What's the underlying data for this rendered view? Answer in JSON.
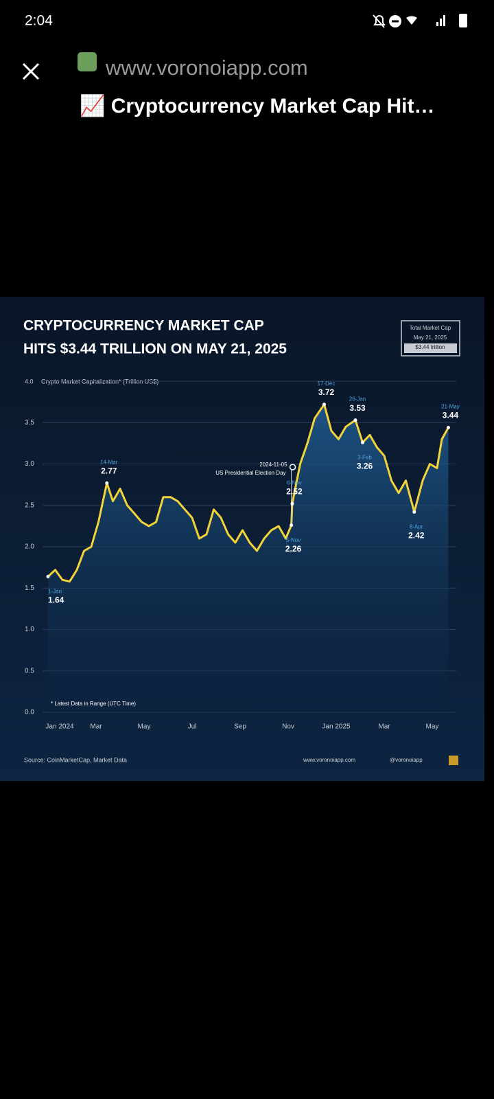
{
  "status_bar": {
    "time": "2:04"
  },
  "header": {
    "url": "www.voronoiapp.com",
    "title": "📈 Cryptocurrency Market Cap Hit…"
  },
  "chart_data": {
    "type": "line",
    "title_lines": [
      "CRYPTOCURRENCY MARKET CAP",
      "HITS $3.44 TRILLION ON MAY 21, 2025"
    ],
    "y_label": "Crypto Market Capitalization* (Trillion US$)",
    "legend_box": [
      "Total Market Cap",
      "May 21, 2025",
      "$3.44 trillion"
    ],
    "xlim": [
      0,
      17
    ],
    "xticks": [
      {
        "value": 0,
        "label": "Jan 2024"
      },
      {
        "value": 2,
        "label": "Mar"
      },
      {
        "value": 4,
        "label": "May"
      },
      {
        "value": 6,
        "label": "Jul"
      },
      {
        "value": 8,
        "label": "Sep"
      },
      {
        "value": 10,
        "label": "Nov"
      },
      {
        "value": 12,
        "label": "Jan 2025"
      },
      {
        "value": 14,
        "label": "Mar"
      },
      {
        "value": 16,
        "label": "May"
      }
    ],
    "ylim": [
      0,
      4
    ],
    "yticks": [
      {
        "value": 0,
        "label": "0.0"
      },
      0.5,
      {
        "value": 1,
        "label": "1.0"
      },
      1.5,
      {
        "value": 2,
        "label": "2.0"
      },
      2.5,
      {
        "value": 3,
        "label": "3.0"
      },
      3.5,
      {
        "value": 4,
        "label": "4.0"
      }
    ],
    "grid": true,
    "series": [
      {
        "name": "Total Market Cap",
        "color": "#f2d43a",
        "x": [
          0,
          0.3,
          0.6,
          0.9,
          1.2,
          1.5,
          1.8,
          2.1,
          2.45,
          2.7,
          3.0,
          3.3,
          3.6,
          3.9,
          4.2,
          4.5,
          4.8,
          5.1,
          5.4,
          5.7,
          6.0,
          6.3,
          6.6,
          6.9,
          7.2,
          7.5,
          7.8,
          8.1,
          8.4,
          8.7,
          9.0,
          9.3,
          9.6,
          9.9,
          10.13,
          10.17,
          10.5,
          10.8,
          11.1,
          11.5,
          11.8,
          12.1,
          12.4,
          12.8,
          13.1,
          13.4,
          13.7,
          14.0,
          14.3,
          14.6,
          14.9,
          15.25,
          15.6,
          15.9,
          16.2,
          16.4,
          16.67
        ],
        "values": [
          1.64,
          1.72,
          1.6,
          1.58,
          1.72,
          1.95,
          2.0,
          2.3,
          2.77,
          2.55,
          2.7,
          2.5,
          2.4,
          2.3,
          2.25,
          2.3,
          2.6,
          2.6,
          2.55,
          2.45,
          2.35,
          2.1,
          2.15,
          2.45,
          2.35,
          2.15,
          2.05,
          2.2,
          2.05,
          1.95,
          2.1,
          2.2,
          2.25,
          2.1,
          2.26,
          2.52,
          3.0,
          3.25,
          3.55,
          3.72,
          3.4,
          3.3,
          3.45,
          3.53,
          3.26,
          3.35,
          3.2,
          3.1,
          2.8,
          2.65,
          2.8,
          2.42,
          2.8,
          3.0,
          2.95,
          3.3,
          3.44
        ]
      }
    ],
    "annotations": [
      {
        "date": "1-Jan",
        "x": 0,
        "value": 1.64
      },
      {
        "date": "14-Mar",
        "x": 2.45,
        "value": 2.77
      },
      {
        "date": "5-Nov",
        "x": 10.13,
        "value": 2.26
      },
      {
        "date": "6-Nov",
        "x": 10.17,
        "value": 2.52
      },
      {
        "date": "17-Dec",
        "x": 11.5,
        "value": 3.72
      },
      {
        "date": "26-Jan",
        "x": 12.8,
        "value": 3.53
      },
      {
        "date": "3-Feb",
        "x": 13.1,
        "value": 3.26
      },
      {
        "date": "8-Apr",
        "x": 15.25,
        "value": 2.42
      },
      {
        "date": "21-May",
        "x": 16.67,
        "value": 3.44
      }
    ],
    "event": {
      "x": 10.13,
      "date": "2024-11-05",
      "label": "US Presidential Election Day"
    },
    "footnote": "* Latest Data in Range (UTC Time)",
    "source": "Source: CoinMarketCap, Market Data",
    "site": "www.voronoiapp.com",
    "handle": "@voronoiapp"
  }
}
